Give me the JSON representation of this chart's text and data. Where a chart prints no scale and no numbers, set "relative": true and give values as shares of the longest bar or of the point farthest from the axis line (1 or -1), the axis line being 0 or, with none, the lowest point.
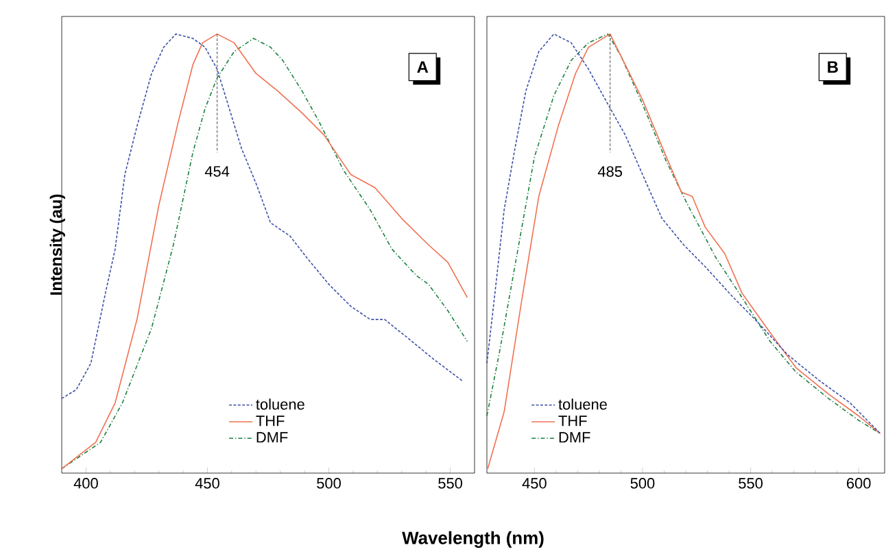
{
  "chart_data": [
    {
      "type": "line",
      "relative": true,
      "ylabel": "Intensity (au)",
      "xlabel": "Wavelength (nm)",
      "xlim": [
        390,
        560
      ],
      "xticks": [
        400,
        450,
        500,
        550
      ],
      "legend": "bottom",
      "annotations": [
        "A"
      ],
      "ref_lines": [
        {
          "axis": "x",
          "value": 454,
          "label": "454",
          "line_style": "dashed"
        }
      ],
      "series": [
        {
          "name": "toluene",
          "color": "#3d4fa8",
          "line_style": "dashed",
          "x": [
            390,
            396,
            402,
            408,
            412,
            416,
            421,
            427,
            432,
            437,
            444,
            449,
            454,
            459,
            464,
            470,
            476,
            484,
            491,
            500,
            509,
            517,
            523,
            532,
            543,
            555
          ],
          "values": [
            0.17,
            0.19,
            0.25,
            0.41,
            0.51,
            0.68,
            0.79,
            0.91,
            0.97,
            1.0,
            0.99,
            0.97,
            0.92,
            0.83,
            0.74,
            0.66,
            0.57,
            0.54,
            0.49,
            0.43,
            0.38,
            0.35,
            0.35,
            0.31,
            0.26,
            0.21
          ]
        },
        {
          "name": "THF",
          "color": "#f07050",
          "line_style": "solid",
          "x": [
            390,
            404,
            412,
            421,
            430,
            438,
            444,
            448,
            454,
            461,
            470,
            479,
            489,
            498,
            509,
            519,
            530,
            541,
            549,
            557
          ],
          "values": [
            0.01,
            0.07,
            0.16,
            0.35,
            0.61,
            0.8,
            0.93,
            0.98,
            1.0,
            0.98,
            0.91,
            0.87,
            0.82,
            0.77,
            0.68,
            0.65,
            0.58,
            0.52,
            0.48,
            0.4
          ]
        },
        {
          "name": "DMF",
          "color": "#1a8040",
          "line_style": "dashdot",
          "x": [
            390,
            406,
            415,
            427,
            436,
            444,
            449,
            454,
            461,
            469,
            476,
            481,
            489,
            496,
            506,
            517,
            526,
            536,
            541,
            549,
            557
          ],
          "values": [
            0.01,
            0.07,
            0.16,
            0.33,
            0.52,
            0.73,
            0.83,
            0.9,
            0.96,
            0.99,
            0.97,
            0.94,
            0.87,
            0.8,
            0.69,
            0.6,
            0.51,
            0.45,
            0.43,
            0.37,
            0.3
          ]
        }
      ]
    },
    {
      "type": "line",
      "relative": true,
      "xlim": [
        428,
        612
      ],
      "xticks": [
        450,
        500,
        550,
        600
      ],
      "legend": "bottom left",
      "annotations": [
        "B"
      ],
      "ref_lines": [
        {
          "axis": "x",
          "value": 485,
          "label": "485",
          "line_style": "dashed"
        }
      ],
      "series": [
        {
          "name": "toluene",
          "color": "#3d4fa8",
          "line_style": "dashed",
          "x": [
            428,
            431.5,
            436,
            441,
            446,
            452,
            459,
            467,
            475,
            484,
            492,
            500,
            509,
            519,
            529,
            542,
            554,
            567,
            582,
            596,
            610
          ],
          "values": [
            0.25,
            0.4,
            0.6,
            0.74,
            0.87,
            0.96,
            1.0,
            0.98,
            0.92,
            0.84,
            0.77,
            0.68,
            0.58,
            0.52,
            0.47,
            0.4,
            0.34,
            0.27,
            0.21,
            0.16,
            0.09
          ]
        },
        {
          "name": "THF",
          "color": "#f07050",
          "line_style": "solid",
          "x": [
            428.4,
            436,
            444,
            452,
            461,
            469,
            475,
            485,
            490,
            500,
            511,
            518,
            523,
            529,
            538,
            546,
            559,
            571,
            586,
            600,
            610
          ],
          "values": [
            0.01,
            0.14,
            0.39,
            0.63,
            0.79,
            0.91,
            0.97,
            1.0,
            0.95,
            0.85,
            0.72,
            0.64,
            0.63,
            0.56,
            0.5,
            0.41,
            0.32,
            0.24,
            0.18,
            0.13,
            0.09
          ]
        },
        {
          "name": "DMF",
          "color": "#1a8040",
          "line_style": "dashdot",
          "x": [
            428,
            434,
            442,
            450,
            459,
            467,
            475,
            484,
            490,
            500,
            511,
            521,
            534,
            546,
            559,
            571,
            586,
            600,
            610
          ],
          "values": [
            0.13,
            0.28,
            0.5,
            0.72,
            0.86,
            0.94,
            0.98,
            1.0,
            0.95,
            0.84,
            0.71,
            0.61,
            0.49,
            0.4,
            0.3,
            0.23,
            0.17,
            0.12,
            0.09
          ]
        }
      ]
    }
  ]
}
